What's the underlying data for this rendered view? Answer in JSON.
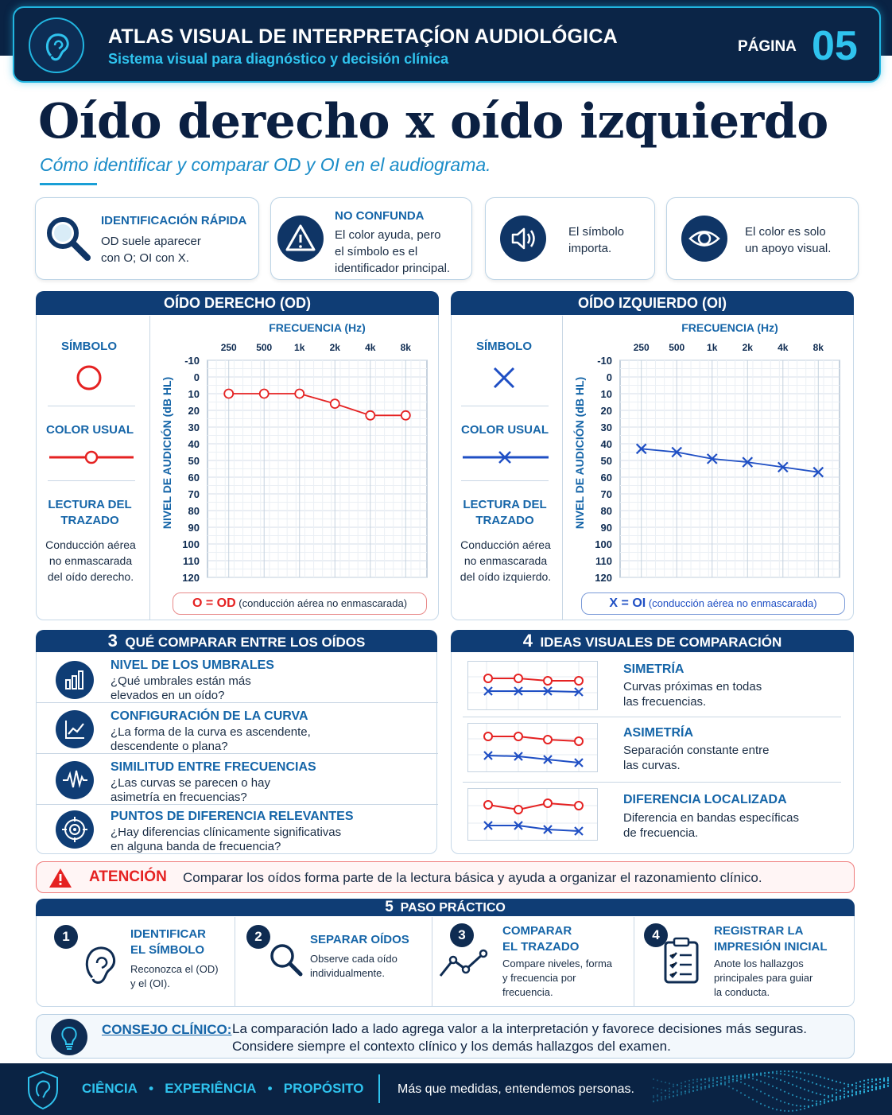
{
  "header": {
    "title": "ATLAS VISUAL DE INTERPRETAÇÍON AUDIOLÓGICA",
    "subtitle": "Sistema visual para diagnóstico y decisión clínica",
    "page_label": "PÁGINA",
    "page_number": "05"
  },
  "title": "Oído derecho x oído izquierdo",
  "subtitle": "Cómo identificar y comparar OD y OI en el audiograma.",
  "tips": [
    {
      "icon": "magnifier-icon",
      "title": "IDENTIFICACIÓN RÁPIDA",
      "lines": [
        "OD suele aparecer",
        "con O; OI con X."
      ]
    },
    {
      "icon": "warning-icon",
      "title": "NO CONFUNDA",
      "lines": [
        "El color ayuda, pero",
        "el símbolo es el",
        "identificador principal."
      ]
    },
    {
      "icon": "speaker-icon",
      "lines": [
        "El símbolo",
        "importa."
      ]
    },
    {
      "icon": "eye-icon",
      "lines": [
        "El color es solo",
        "un apoyo visual."
      ]
    }
  ],
  "od_panel": {
    "heading": "OÍDO DERECHO (OD)",
    "symbol_label": "SÍMBOLO",
    "color_label": "COLOR USUAL",
    "reading_label_1": "LECTURA DEL",
    "reading_label_2": "TRAZADO",
    "reading_lines": [
      "Conducción aérea",
      "no enmascarada",
      "del oído derecho."
    ],
    "legend_key": "O = OD",
    "legend_desc": "(conducción aérea no enmascarada)",
    "color": "#e52222"
  },
  "oi_panel": {
    "heading": "OÍDO IZQUIERDO (OI)",
    "symbol_label": "SÍMBOLO",
    "color_label": "COLOR USUAL",
    "reading_label_1": "LECTURA DEL",
    "reading_label_2": "TRAZADO",
    "reading_lines": [
      "Conducción aérea",
      "no enmascarada",
      "del oído izquierdo."
    ],
    "legend_key": "X = OI",
    "legend_desc": "(conducción aérea no enmascarada)",
    "color": "#1f4fc4"
  },
  "chart_data": [
    {
      "type": "line",
      "title": "FRECUENCIA (Hz)",
      "xlabel": "FRECUENCIA (Hz)",
      "ylabel": "NIVEL DE AUDICIÓN (dB HL)",
      "categories": [
        "250",
        "500",
        "1k",
        "2k",
        "4k",
        "8k"
      ],
      "y_ticks": [
        "-10",
        "0",
        "10",
        "20",
        "30",
        "40",
        "50",
        "60",
        "70",
        "80",
        "90",
        "100",
        "110",
        "120"
      ],
      "ylim": [
        -10,
        120
      ],
      "y_inverted": true,
      "grid": true,
      "series": [
        {
          "name": "OD",
          "marker": "circle",
          "color": "#e52222",
          "values": [
            10,
            10,
            10,
            16,
            23,
            23
          ]
        }
      ]
    },
    {
      "type": "line",
      "title": "FRECUENCIA (Hz)",
      "xlabel": "FRECUENCIA (Hz)",
      "ylabel": "NIVEL DE AUDICIÓN (dB HL)",
      "categories": [
        "250",
        "500",
        "1k",
        "2k",
        "4k",
        "8k"
      ],
      "y_ticks": [
        "-10",
        "0",
        "10",
        "20",
        "30",
        "40",
        "50",
        "60",
        "70",
        "80",
        "90",
        "100",
        "110",
        "120"
      ],
      "ylim": [
        -10,
        120
      ],
      "y_inverted": true,
      "grid": true,
      "series": [
        {
          "name": "OI",
          "marker": "x",
          "color": "#1f4fc4",
          "values": [
            43,
            45,
            49,
            51,
            54,
            57
          ]
        }
      ]
    }
  ],
  "section3": {
    "number": "3",
    "heading": "QUÉ COMPARAR ENTRE LOS OÍDOS",
    "items": [
      {
        "icon": "bar-chart-icon",
        "title": "NIVEL DE LOS UMBRALES",
        "lines": [
          "¿Qué umbrales están más",
          "elevados en un oído?"
        ]
      },
      {
        "icon": "line-chart-icon",
        "title": "CONFIGURACIÓN DE LA CURVA",
        "lines": [
          "¿La forma de la curva es ascendente,",
          "descendente o plana?"
        ]
      },
      {
        "icon": "waveform-icon",
        "title": "SIMILITUD ENTRE FRECUENCIAS",
        "lines": [
          "¿Las curvas se parecen o hay",
          "asimetría en frecuencias?"
        ]
      },
      {
        "icon": "target-icon",
        "title": "PUNTOS DE DIFERENCIA RELEVANTES",
        "lines": [
          "¿Hay diferencias clínicamente significativas",
          "en alguna banda de frecuencia?"
        ]
      }
    ]
  },
  "section4": {
    "number": "4",
    "heading": "IDEAS VISUALES DE COMPARACIÓN",
    "items": [
      {
        "title": "SIMETRÍA",
        "lines": [
          "Curvas próximas en todas",
          "las frecuencias."
        ]
      },
      {
        "title": "ASIMETRÍA",
        "lines": [
          "Separación constante entre",
          "las curvas."
        ]
      },
      {
        "title": "DIFERENCIA LOCALIZADA",
        "lines": [
          "Diferencia en bandas específicas",
          "de frecuencia."
        ]
      }
    ]
  },
  "attention": {
    "label": "ATENCIÓN",
    "text": "Comparar los oídos forma parte de la lectura básica y ayuda a organizar el razonamiento clínico."
  },
  "section5": {
    "number": "5",
    "heading": "PASO PRÁCTICO",
    "steps": [
      {
        "num": "1",
        "icon": "ear-icon",
        "title_lines": [
          "IDENTIFICAR",
          "EL SÍMBOLO"
        ],
        "lines": [
          "Reconozca el (OD)",
          "y el (OI)."
        ]
      },
      {
        "num": "2",
        "icon": "search-icon",
        "title_lines": [
          "SEPARAR OÍDOS"
        ],
        "lines": [
          "Observe cada oído",
          "individualmente."
        ]
      },
      {
        "num": "3",
        "icon": "trend-icon",
        "title_lines": [
          "COMPARAR",
          "EL TRAZADO"
        ],
        "lines": [
          "Compare niveles, forma",
          "y frecuencia por",
          "frecuencia."
        ]
      },
      {
        "num": "4",
        "icon": "clipboard-icon",
        "title_lines": [
          "REGISTRAR LA",
          "IMPRESIÓN INICIAL"
        ],
        "lines": [
          "Anote los hallazgos",
          "principales para guiar",
          "la conducta."
        ]
      }
    ]
  },
  "tip_clinical": {
    "label": "CONSEJO CLÍNICO:",
    "lines": [
      "La comparación lado a lado agrega valor a la interpretación y favorece decisiones más seguras.",
      "Considere siempre el contexto clínico y los demás hallazgos del examen."
    ]
  },
  "footer": {
    "words": [
      "CIÊNCIA",
      "EXPERIÊNCIA",
      "PROPÓSITO"
    ],
    "tagline": "Más que medidas, entendemos personas."
  }
}
